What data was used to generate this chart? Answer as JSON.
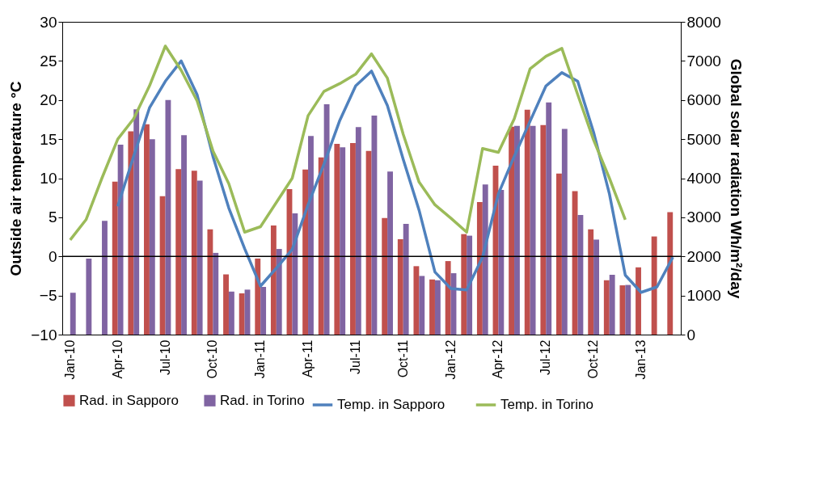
{
  "chart_data": {
    "type": "bar",
    "ylabel": "Outside air temperature °C",
    "y2label": "Global solar radiation Wh/m²/day",
    "categories": [
      "Jan-10",
      null,
      null,
      "Apr-10",
      null,
      null,
      "Jul-10",
      null,
      null,
      "Oct-10",
      null,
      null,
      "Jan-11",
      null,
      null,
      "Apr-11",
      null,
      null,
      "Jul-11",
      null,
      null,
      "Oct-11",
      null,
      null,
      "Jan-12",
      null,
      null,
      "Apr-12",
      null,
      null,
      "Jul-12",
      null,
      null,
      "Oct-12",
      null,
      null,
      "Jan-13",
      null,
      null
    ],
    "ylim": [
      -10,
      30
    ],
    "yticks": [
      -10,
      -5,
      0,
      5,
      10,
      15,
      20,
      25,
      30
    ],
    "y2lim": [
      0,
      8000
    ],
    "y2ticks": [
      0,
      1000,
      2000,
      3000,
      4000,
      5000,
      6000,
      7000,
      8000
    ],
    "legend": "bottom",
    "ref_lines": [
      {
        "axis": "y",
        "value": 0,
        "color": "#000000"
      }
    ],
    "series": [
      {
        "name": "Rad. in Sapporo",
        "type": "bar",
        "axis": "y2",
        "color": "#c0504d",
        "values": [
          null,
          null,
          null,
          3910,
          5200,
          5380,
          3540,
          4230,
          4190,
          2690,
          1540,
          1055,
          1945,
          2790,
          3720,
          4220,
          4530,
          4880,
          4900,
          4700,
          2980,
          2440,
          1750,
          1410,
          1880,
          2570,
          3390,
          4320,
          5320,
          5750,
          5360,
          4120,
          3670,
          2690,
          1390,
          1260,
          1720,
          2510,
          3130
        ]
      },
      {
        "name": "Rad. in Torino",
        "type": "bar",
        "axis": "y2",
        "color": "#8064a2",
        "values": [
          1070,
          1945,
          2910,
          4860,
          5760,
          5000,
          6000,
          5100,
          3940,
          2090,
          1100,
          1150,
          1220,
          2190,
          3100,
          5080,
          5890,
          4790,
          5310,
          5600,
          4170,
          2830,
          1500,
          1390,
          1570,
          2530,
          3840,
          3700,
          5340,
          5340,
          5940,
          5260,
          3060,
          2430,
          1530,
          1270,
          null,
          null,
          null
        ]
      },
      {
        "name": "Temp. in Sapporo",
        "type": "line",
        "axis": "y",
        "color": "#4f81bd",
        "values": [
          null,
          null,
          null,
          6.4,
          12.8,
          19,
          22.4,
          25,
          20.7,
          12.8,
          6.2,
          1,
          -3.8,
          -1.5,
          0.9,
          6.6,
          11.8,
          17.4,
          21.8,
          23.7,
          19.3,
          12.4,
          5.9,
          -2,
          -4.1,
          -4.3,
          -0.1,
          8,
          12.8,
          17.3,
          21.8,
          23.5,
          22.4,
          15.9,
          8,
          -2.4,
          -4.6,
          -3.9,
          -0.1
        ]
      },
      {
        "name": "Temp. in Torino",
        "type": "line",
        "axis": "y",
        "color": "#9bbb59",
        "values": [
          2.1,
          4.7,
          10,
          15,
          17.6,
          21.8,
          26.9,
          23.8,
          19.9,
          13.5,
          9.3,
          3.1,
          3.8,
          6.9,
          10,
          18,
          21.1,
          22.1,
          23.3,
          25.9,
          22.8,
          15.6,
          9.5,
          6.6,
          4.9,
          3.1,
          13.8,
          13.3,
          17.6,
          24,
          25.6,
          26.6,
          20.7,
          14.9,
          10,
          4.7,
          null,
          null,
          null
        ]
      }
    ]
  }
}
